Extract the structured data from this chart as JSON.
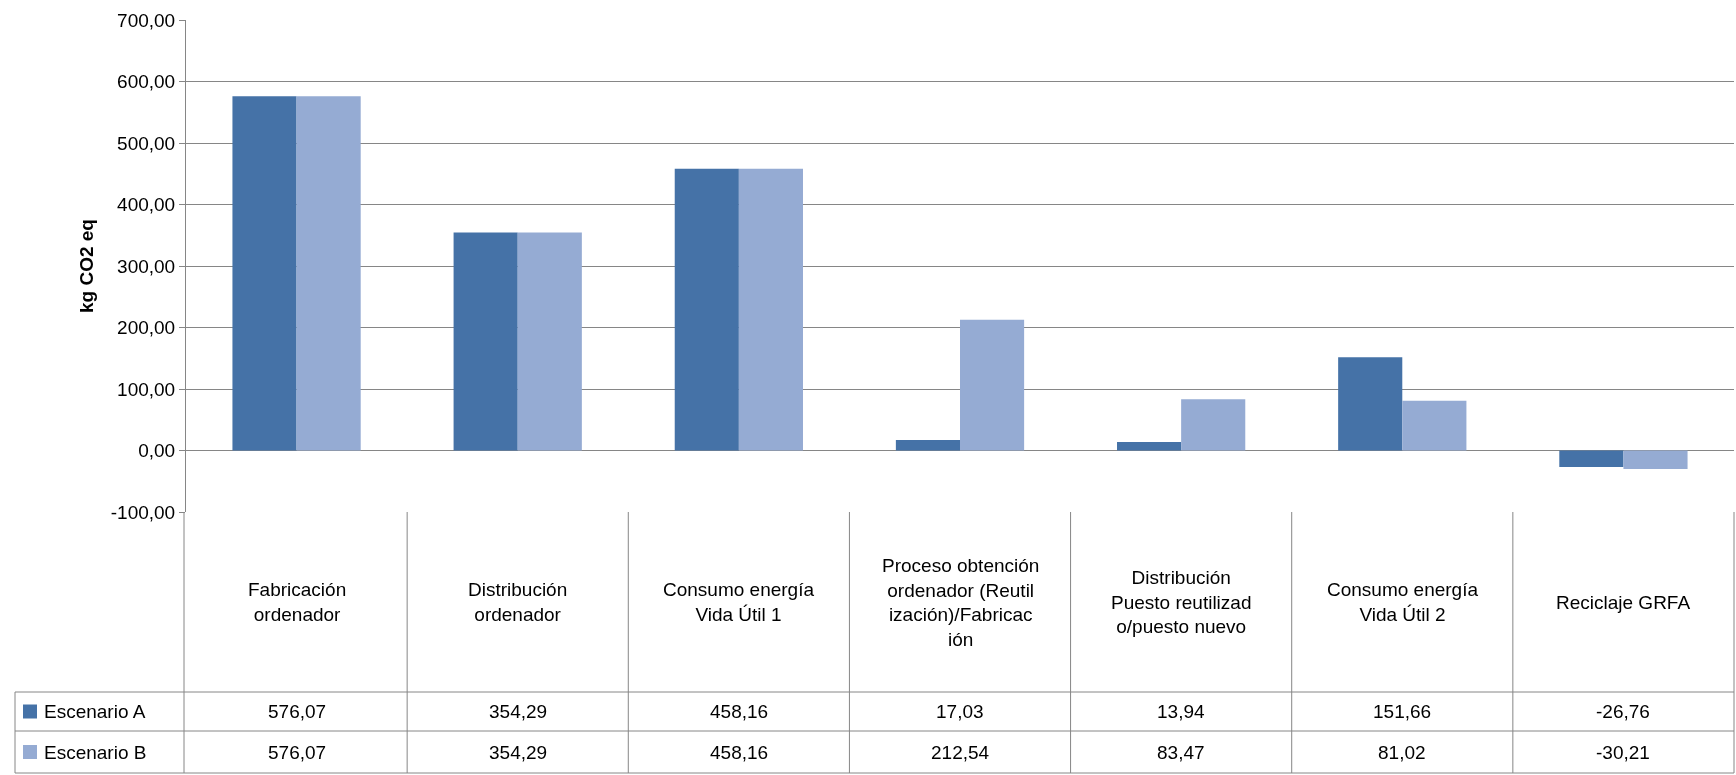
{
  "chart_data": {
    "type": "bar",
    "ylabel": "kg CO2 eq",
    "categories": [
      "Fabricación ordenador",
      "Distribución ordenador",
      "Consumo energía Vida Útil 1",
      "Proceso obtención ordenador (Reutilización)/Fabricación",
      "Distribución Puesto reutilizado/puesto nuevo",
      "Consumo energía Vida Útil 2",
      "Reciclaje GRFA"
    ],
    "series": [
      {
        "name": "Escenario A",
        "color": "#4572a7",
        "values": [
          576.07,
          354.29,
          458.16,
          17.03,
          13.94,
          151.66,
          -26.76
        ],
        "value_labels": [
          "576,07",
          "354,29",
          "458,16",
          "17,03",
          "13,94",
          "151,66",
          "-26,76"
        ]
      },
      {
        "name": "Escenario B",
        "color": "#95abd3",
        "values": [
          576.07,
          354.29,
          458.16,
          212.54,
          83.47,
          81.02,
          -30.21
        ],
        "value_labels": [
          "576,07",
          "354,29",
          "458,16",
          "212,54",
          "83,47",
          "81,02",
          "-30,21"
        ]
      }
    ],
    "ylim": [
      -100,
      700
    ],
    "yticks": [
      {
        "value": -100,
        "label": "-100,00"
      },
      {
        "value": 0,
        "label": "0,00"
      },
      {
        "value": 100,
        "label": "100,00"
      },
      {
        "value": 200,
        "label": "200,00"
      },
      {
        "value": 300,
        "label": "300,00"
      },
      {
        "value": 400,
        "label": "400,00"
      },
      {
        "value": 500,
        "label": "500,00"
      },
      {
        "value": 600,
        "label": "600,00"
      },
      {
        "value": 700,
        "label": "700,00"
      }
    ],
    "grid": "y",
    "legend": "bottom"
  }
}
